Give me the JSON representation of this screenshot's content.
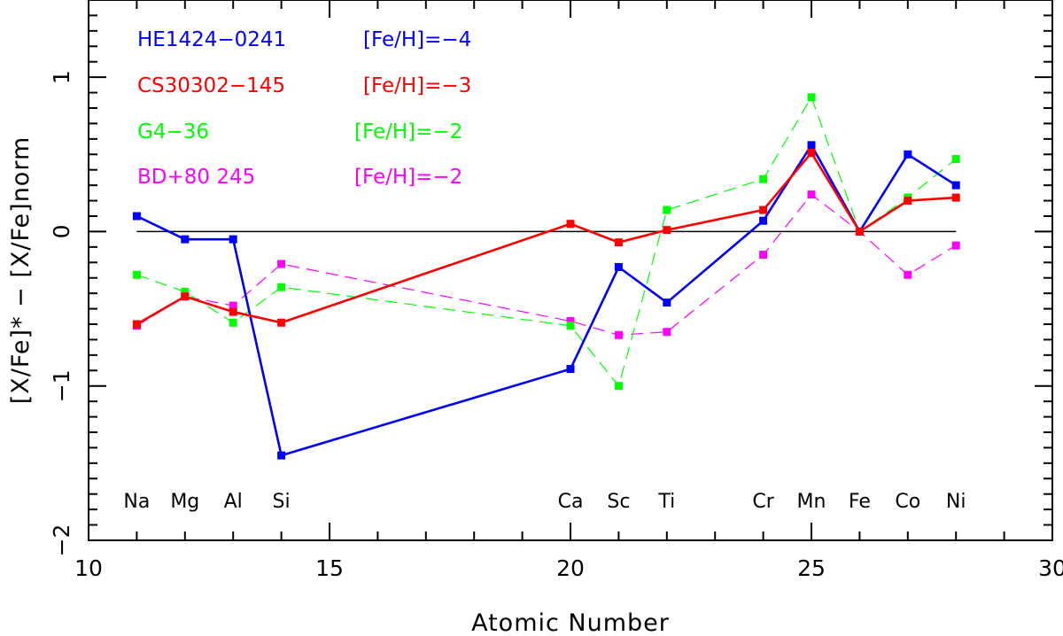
{
  "chart_data": {
    "type": "line",
    "xlabel": "Atomic Number",
    "ylabel": "[X/Fe]* − [X/Fe]norm",
    "xlim": [
      10,
      30
    ],
    "ylim": [
      -2,
      1.5
    ],
    "x_ticks": [
      10,
      15,
      20,
      25,
      30
    ],
    "y_ticks": [
      -2,
      -1,
      0,
      1
    ],
    "x_tick_labels": [
      "10",
      "15",
      "20",
      "25",
      "30"
    ],
    "y_tick_labels": [
      "−2",
      "−1",
      "0",
      "1"
    ],
    "reference_line": 0,
    "element_labels": [
      {
        "x": 11,
        "text": "Na"
      },
      {
        "x": 12,
        "text": "Mg"
      },
      {
        "x": 13,
        "text": "Al"
      },
      {
        "x": 14,
        "text": "Si"
      },
      {
        "x": 20,
        "text": "Ca"
      },
      {
        "x": 21,
        "text": "Sc"
      },
      {
        "x": 22,
        "text": "Ti"
      },
      {
        "x": 24,
        "text": "Cr"
      },
      {
        "x": 25,
        "text": "Mn"
      },
      {
        "x": 26,
        "text": "Fe"
      },
      {
        "x": 27,
        "text": "Co"
      },
      {
        "x": 28,
        "text": "Ni"
      }
    ],
    "series": [
      {
        "name": "HE1424−0241",
        "metallicity": "[Fe/H]=−4",
        "color": "#0000ff",
        "style": "solid",
        "x": [
          11,
          12,
          13,
          14,
          20,
          21,
          22,
          24,
          25,
          26,
          27,
          28
        ],
        "y": [
          0.1,
          -0.05,
          -0.05,
          -1.45,
          -0.89,
          -0.23,
          -0.46,
          0.07,
          0.56,
          0.0,
          0.5,
          0.3
        ]
      },
      {
        "name": "CS30302−145",
        "metallicity": "[Fe/H]=−3",
        "color": "#ff0000",
        "style": "solid",
        "x": [
          11,
          12,
          13,
          14,
          20,
          21,
          22,
          24,
          25,
          26,
          27,
          28
        ],
        "y": [
          -0.6,
          -0.42,
          -0.52,
          -0.59,
          0.05,
          -0.07,
          0.01,
          0.14,
          0.51,
          0.0,
          0.2,
          0.22
        ]
      },
      {
        "name": "G4−36",
        "metallicity": "[Fe/H]=−2",
        "color": "#00ff00",
        "style": "dashed",
        "x": [
          11,
          12,
          13,
          14,
          20,
          21,
          22,
          24,
          25,
          26,
          27,
          28
        ],
        "y": [
          -0.28,
          -0.39,
          -0.59,
          -0.36,
          -0.61,
          -1.0,
          0.14,
          0.34,
          0.87,
          0.0,
          0.22,
          0.47
        ]
      },
      {
        "name": "BD+80 245",
        "metallicity": "[Fe/H]=−2",
        "color": "#ff00ff",
        "style": "dashed",
        "x": [
          11,
          12,
          13,
          14,
          20,
          21,
          22,
          24,
          25,
          26,
          27,
          28
        ],
        "y": [
          -0.61,
          -0.42,
          -0.48,
          -0.21,
          -0.58,
          -0.67,
          -0.65,
          -0.15,
          0.24,
          0.0,
          -0.28,
          -0.09
        ]
      }
    ],
    "grid": false,
    "legend_placement": "top-left"
  }
}
